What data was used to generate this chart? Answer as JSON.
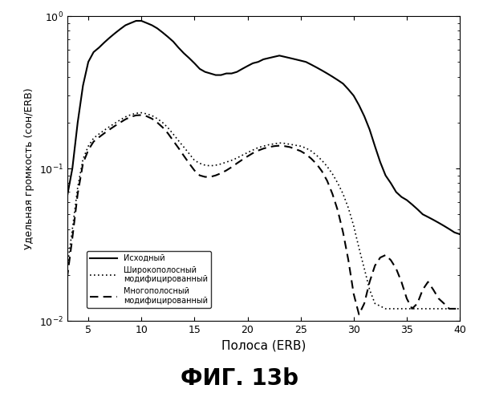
{
  "title": "ФИГ. 13b",
  "xlabel": "Полоса (ERB)",
  "ylabel": "Удельная громкость (сон/ERB)",
  "xlim": [
    3,
    40
  ],
  "ylim": [
    0.01,
    1.0
  ],
  "xticks": [
    5,
    10,
    15,
    20,
    25,
    30,
    35,
    40
  ],
  "legend": [
    {
      "label": "Исходный",
      "linestyle": "-",
      "color": "#000000",
      "linewidth": 1.5
    },
    {
      "label": "Широкополосный\nмодифицированный",
      "linestyle": ":",
      "color": "#000000",
      "linewidth": 1.2
    },
    {
      "label": "Многополосный\nмодифицированный",
      "linestyle": "--",
      "color": "#000000",
      "linewidth": 1.5
    }
  ],
  "line1_x": [
    3,
    3.5,
    4,
    4.5,
    5,
    5.5,
    6,
    6.5,
    7,
    7.5,
    8,
    8.5,
    9,
    9.5,
    10,
    10.5,
    11,
    11.5,
    12,
    12.5,
    13,
    13.5,
    14,
    14.5,
    15,
    15.5,
    16,
    16.5,
    17,
    17.5,
    18,
    18.5,
    19,
    19.5,
    20,
    20.5,
    21,
    21.5,
    22,
    22.5,
    23,
    23.5,
    24,
    24.5,
    25,
    25.5,
    26,
    26.5,
    27,
    27.5,
    28,
    28.5,
    29,
    29.5,
    30,
    30.5,
    31,
    31.5,
    32,
    32.5,
    33,
    33.5,
    34,
    34.5,
    35,
    35.5,
    36,
    36.5,
    37,
    37.5,
    38,
    38.5,
    39,
    39.5,
    40
  ],
  "line1_y": [
    0.065,
    0.1,
    0.2,
    0.35,
    0.5,
    0.58,
    0.62,
    0.67,
    0.72,
    0.77,
    0.82,
    0.87,
    0.9,
    0.93,
    0.93,
    0.9,
    0.87,
    0.83,
    0.78,
    0.73,
    0.68,
    0.62,
    0.57,
    0.53,
    0.49,
    0.45,
    0.43,
    0.42,
    0.41,
    0.41,
    0.42,
    0.42,
    0.43,
    0.45,
    0.47,
    0.49,
    0.5,
    0.52,
    0.53,
    0.54,
    0.55,
    0.54,
    0.53,
    0.52,
    0.51,
    0.5,
    0.48,
    0.46,
    0.44,
    0.42,
    0.4,
    0.38,
    0.36,
    0.33,
    0.3,
    0.26,
    0.22,
    0.18,
    0.14,
    0.11,
    0.09,
    0.08,
    0.07,
    0.065,
    0.062,
    0.058,
    0.054,
    0.05,
    0.048,
    0.046,
    0.044,
    0.042,
    0.04,
    0.038,
    0.037
  ],
  "line2_x": [
    3,
    3.5,
    4,
    4.5,
    5,
    5.5,
    6,
    6.5,
    7,
    7.5,
    8,
    8.5,
    9,
    9.5,
    10,
    10.5,
    11,
    11.5,
    12,
    12.5,
    13,
    13.5,
    14,
    14.5,
    15,
    15.5,
    16,
    16.5,
    17,
    17.5,
    18,
    18.5,
    19,
    19.5,
    20,
    20.5,
    21,
    21.5,
    22,
    22.5,
    23,
    23.5,
    24,
    24.5,
    25,
    25.5,
    26,
    26.5,
    27,
    27.5,
    28,
    28.5,
    29,
    29.5,
    30,
    30.5,
    31,
    31.5,
    32,
    33,
    34,
    35,
    36,
    37,
    38,
    39,
    40
  ],
  "line2_y": [
    0.022,
    0.04,
    0.075,
    0.115,
    0.14,
    0.158,
    0.168,
    0.178,
    0.188,
    0.198,
    0.208,
    0.218,
    0.225,
    0.23,
    0.232,
    0.228,
    0.222,
    0.212,
    0.2,
    0.185,
    0.168,
    0.152,
    0.138,
    0.125,
    0.113,
    0.108,
    0.105,
    0.104,
    0.105,
    0.107,
    0.11,
    0.113,
    0.117,
    0.122,
    0.127,
    0.132,
    0.137,
    0.14,
    0.143,
    0.145,
    0.147,
    0.146,
    0.144,
    0.142,
    0.14,
    0.136,
    0.13,
    0.122,
    0.113,
    0.103,
    0.092,
    0.08,
    0.068,
    0.055,
    0.042,
    0.03,
    0.022,
    0.016,
    0.013,
    0.012,
    0.012,
    0.012,
    0.012,
    0.012,
    0.012,
    0.012,
    0.012
  ],
  "line3_x": [
    3,
    3.5,
    4,
    4.5,
    5,
    5.5,
    6,
    6.5,
    7,
    7.5,
    8,
    8.5,
    9,
    9.5,
    10,
    10.5,
    11,
    11.5,
    12,
    12.5,
    13,
    13.5,
    14,
    14.5,
    15,
    15.5,
    16,
    16.5,
    17,
    17.5,
    18,
    18.5,
    19,
    19.5,
    20,
    20.5,
    21,
    21.5,
    22,
    22.5,
    23,
    23.5,
    24,
    24.5,
    25,
    25.5,
    26,
    26.5,
    27,
    27.5,
    28,
    28.5,
    29,
    29.5,
    30,
    30.5,
    31,
    31.5,
    32,
    32.5,
    33,
    33.5,
    34,
    34.5,
    35,
    35.5,
    36,
    36.5,
    37,
    37.5,
    38,
    38.5,
    39,
    39.5,
    40
  ],
  "line3_y": [
    0.019,
    0.035,
    0.068,
    0.108,
    0.132,
    0.15,
    0.16,
    0.17,
    0.18,
    0.19,
    0.2,
    0.21,
    0.218,
    0.223,
    0.224,
    0.22,
    0.212,
    0.2,
    0.186,
    0.17,
    0.152,
    0.136,
    0.121,
    0.108,
    0.097,
    0.09,
    0.088,
    0.088,
    0.09,
    0.093,
    0.097,
    0.102,
    0.108,
    0.114,
    0.12,
    0.126,
    0.131,
    0.135,
    0.138,
    0.14,
    0.141,
    0.14,
    0.138,
    0.134,
    0.13,
    0.124,
    0.116,
    0.107,
    0.096,
    0.083,
    0.068,
    0.053,
    0.038,
    0.025,
    0.015,
    0.011,
    0.013,
    0.018,
    0.023,
    0.026,
    0.027,
    0.025,
    0.022,
    0.018,
    0.014,
    0.012,
    0.013,
    0.016,
    0.018,
    0.016,
    0.014,
    0.013,
    0.012,
    0.012,
    0.012
  ]
}
